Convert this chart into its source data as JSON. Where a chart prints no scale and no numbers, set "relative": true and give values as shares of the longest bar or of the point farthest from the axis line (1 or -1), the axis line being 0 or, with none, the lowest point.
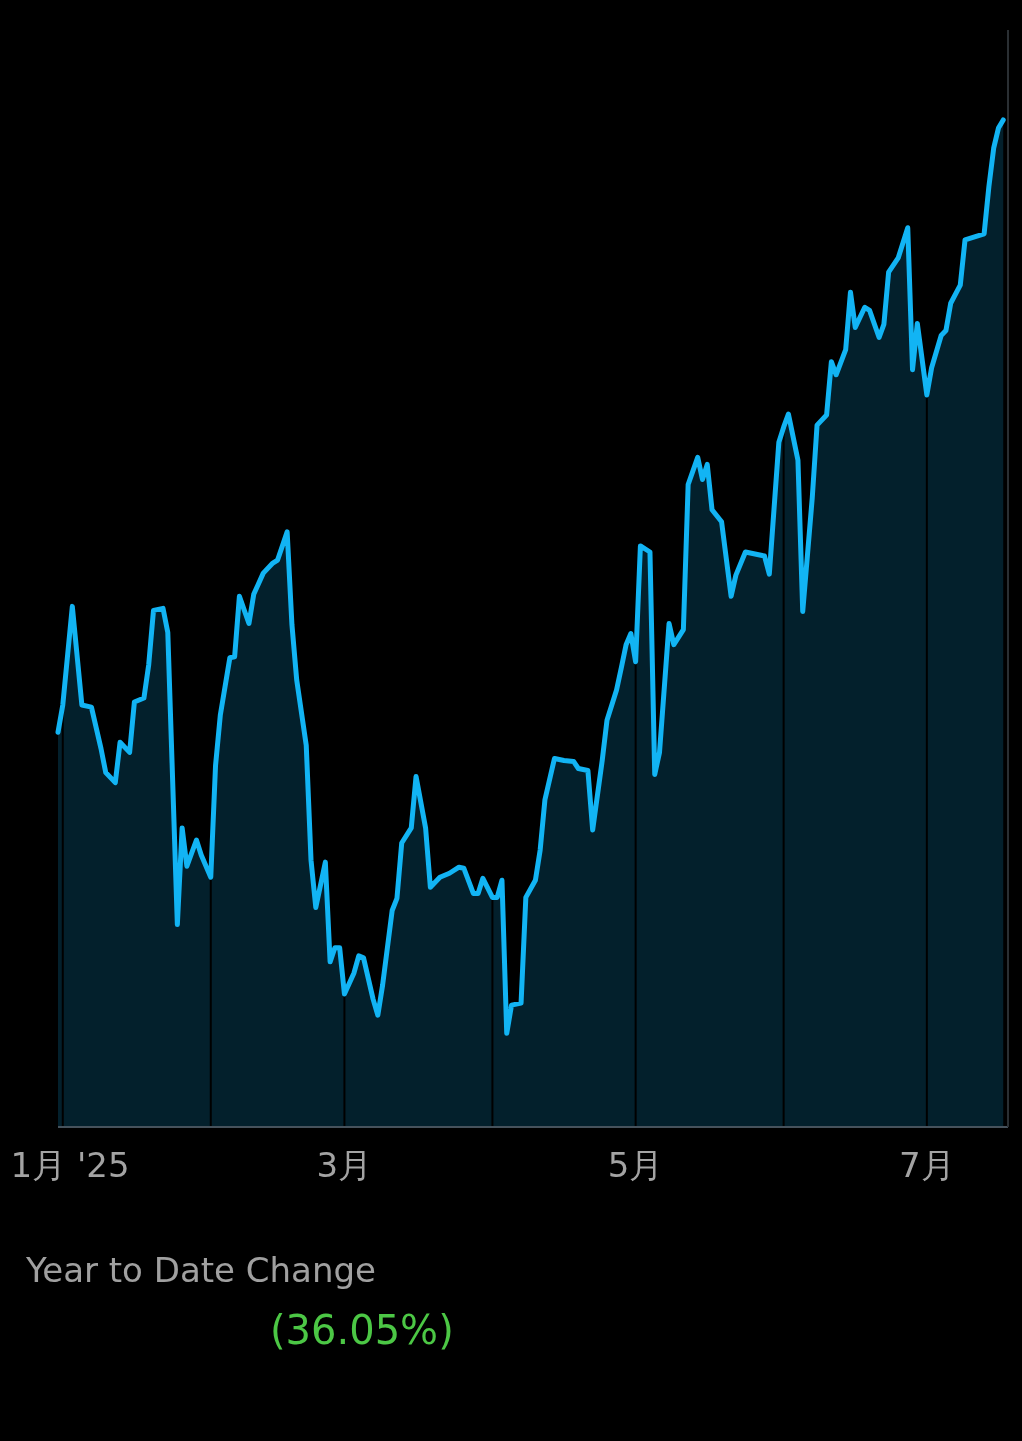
{
  "chart_data": {
    "type": "area",
    "relative": true,
    "grid": "x",
    "xlim": [
      "2024-12-31",
      "2025-07-18"
    ],
    "xticks": [
      {
        "value": "2025-01-01",
        "label": "1月 '25"
      },
      {
        "value": "2025-02-01",
        "label": null
      },
      {
        "value": "2025-03-01",
        "label": "3月"
      },
      {
        "value": "2025-04-01",
        "label": null
      },
      {
        "value": "2025-05-01",
        "label": "5月"
      },
      {
        "value": "2025-06-01",
        "label": null
      },
      {
        "value": "2025-07-01",
        "label": "7月"
      }
    ],
    "x": [
      "2024-12-31",
      "2025-01-01",
      "2025-01-03",
      "2025-01-05",
      "2025-01-07",
      "2025-01-09",
      "2025-01-10",
      "2025-01-12",
      "2025-01-13",
      "2025-01-15",
      "2025-01-16",
      "2025-01-18",
      "2025-01-19",
      "2025-01-20",
      "2025-01-22",
      "2025-01-23",
      "2025-01-25",
      "2025-01-26",
      "2025-01-27",
      "2025-01-29",
      "2025-01-30",
      "2025-02-01",
      "2025-02-02",
      "2025-02-03",
      "2025-02-05",
      "2025-02-06",
      "2025-02-07",
      "2025-02-09",
      "2025-02-10",
      "2025-02-12",
      "2025-02-14",
      "2025-02-15",
      "2025-02-17",
      "2025-02-18",
      "2025-02-19",
      "2025-02-21",
      "2025-02-22",
      "2025-02-23",
      "2025-02-25",
      "2025-02-26",
      "2025-02-27",
      "2025-02-28",
      "2025-03-01",
      "2025-03-03",
      "2025-03-04",
      "2025-03-05",
      "2025-03-07",
      "2025-03-08",
      "2025-03-09",
      "2025-03-11",
      "2025-03-12",
      "2025-03-13",
      "2025-03-15",
      "2025-03-16",
      "2025-03-18",
      "2025-03-19",
      "2025-03-21",
      "2025-03-23",
      "2025-03-25",
      "2025-03-26",
      "2025-03-28",
      "2025-03-29",
      "2025-03-30",
      "2025-04-01",
      "2025-04-02",
      "2025-04-03",
      "2025-04-04",
      "2025-04-05",
      "2025-04-07",
      "2025-04-08",
      "2025-04-10",
      "2025-04-11",
      "2025-04-12",
      "2025-04-14",
      "2025-04-16",
      "2025-04-18",
      "2025-04-19",
      "2025-04-21",
      "2025-04-22",
      "2025-04-24",
      "2025-04-25",
      "2025-04-27",
      "2025-04-28",
      "2025-04-29",
      "2025-04-30",
      "2025-05-01",
      "2025-05-02",
      "2025-05-04",
      "2025-05-05",
      "2025-05-06",
      "2025-05-08",
      "2025-05-09",
      "2025-05-11",
      "2025-05-12",
      "2025-05-14",
      "2025-05-15",
      "2025-05-16",
      "2025-05-17",
      "2025-05-19",
      "2025-05-21",
      "2025-05-22",
      "2025-05-24",
      "2025-05-26",
      "2025-05-28",
      "2025-05-29",
      "2025-05-31",
      "2025-06-01",
      "2025-06-02",
      "2025-06-04",
      "2025-06-05",
      "2025-06-07",
      "2025-06-08",
      "2025-06-10",
      "2025-06-11",
      "2025-06-12",
      "2025-06-14",
      "2025-06-15",
      "2025-06-16",
      "2025-06-18",
      "2025-06-19",
      "2025-06-21",
      "2025-06-22",
      "2025-06-23",
      "2025-06-25",
      "2025-06-27",
      "2025-06-28",
      "2025-06-29",
      "2025-07-01",
      "2025-07-02",
      "2025-07-04",
      "2025-07-05",
      "2025-07-06",
      "2025-07-08",
      "2025-07-09",
      "2025-07-11",
      "2025-07-13",
      "2025-07-14",
      "2025-07-15",
      "2025-07-16",
      "2025-07-17"
    ],
    "series": [
      {
        "color": "#12b4f4",
        "values": [
          0.392,
          0.419,
          0.517,
          0.419,
          0.417,
          0.376,
          0.352,
          0.342,
          0.382,
          0.372,
          0.422,
          0.426,
          0.459,
          0.513,
          0.515,
          0.491,
          0.201,
          0.297,
          0.259,
          0.285,
          0.27,
          0.248,
          0.359,
          0.409,
          0.466,
          0.467,
          0.527,
          0.5,
          0.529,
          0.55,
          0.56,
          0.563,
          0.591,
          0.499,
          0.444,
          0.379,
          0.265,
          0.218,
          0.263,
          0.164,
          0.178,
          0.178,
          0.132,
          0.153,
          0.17,
          0.168,
          0.127,
          0.111,
          0.141,
          0.215,
          0.227,
          0.282,
          0.297,
          0.348,
          0.297,
          0.238,
          0.248,
          0.252,
          0.258,
          0.257,
          0.232,
          0.232,
          0.247,
          0.228,
          0.228,
          0.245,
          0.093,
          0.121,
          0.123,
          0.228,
          0.245,
          0.275,
          0.325,
          0.366,
          0.364,
          0.363,
          0.356,
          0.354,
          0.295,
          0.364,
          0.404,
          0.434,
          0.456,
          0.479,
          0.49,
          0.462,
          0.577,
          0.571,
          0.35,
          0.372,
          0.5,
          0.479,
          0.494,
          0.638,
          0.665,
          0.643,
          0.658,
          0.613,
          0.601,
          0.527,
          0.548,
          0.571,
          0.569,
          0.567,
          0.549,
          0.68,
          0.695,
          0.708,
          0.662,
          0.512,
          0.625,
          0.697,
          0.707,
          0.76,
          0.747,
          0.772,
          0.829,
          0.794,
          0.814,
          0.811,
          0.784,
          0.797,
          0.849,
          0.863,
          0.893,
          0.752,
          0.798,
          0.727,
          0.754,
          0.786,
          0.791,
          0.818,
          0.836,
          0.881,
          0.884,
          0.887,
          0.934,
          0.972,
          0.992,
          1.0
        ]
      }
    ],
    "annotations": [
      "Year to Date Change",
      "(36.05%)"
    ]
  }
}
